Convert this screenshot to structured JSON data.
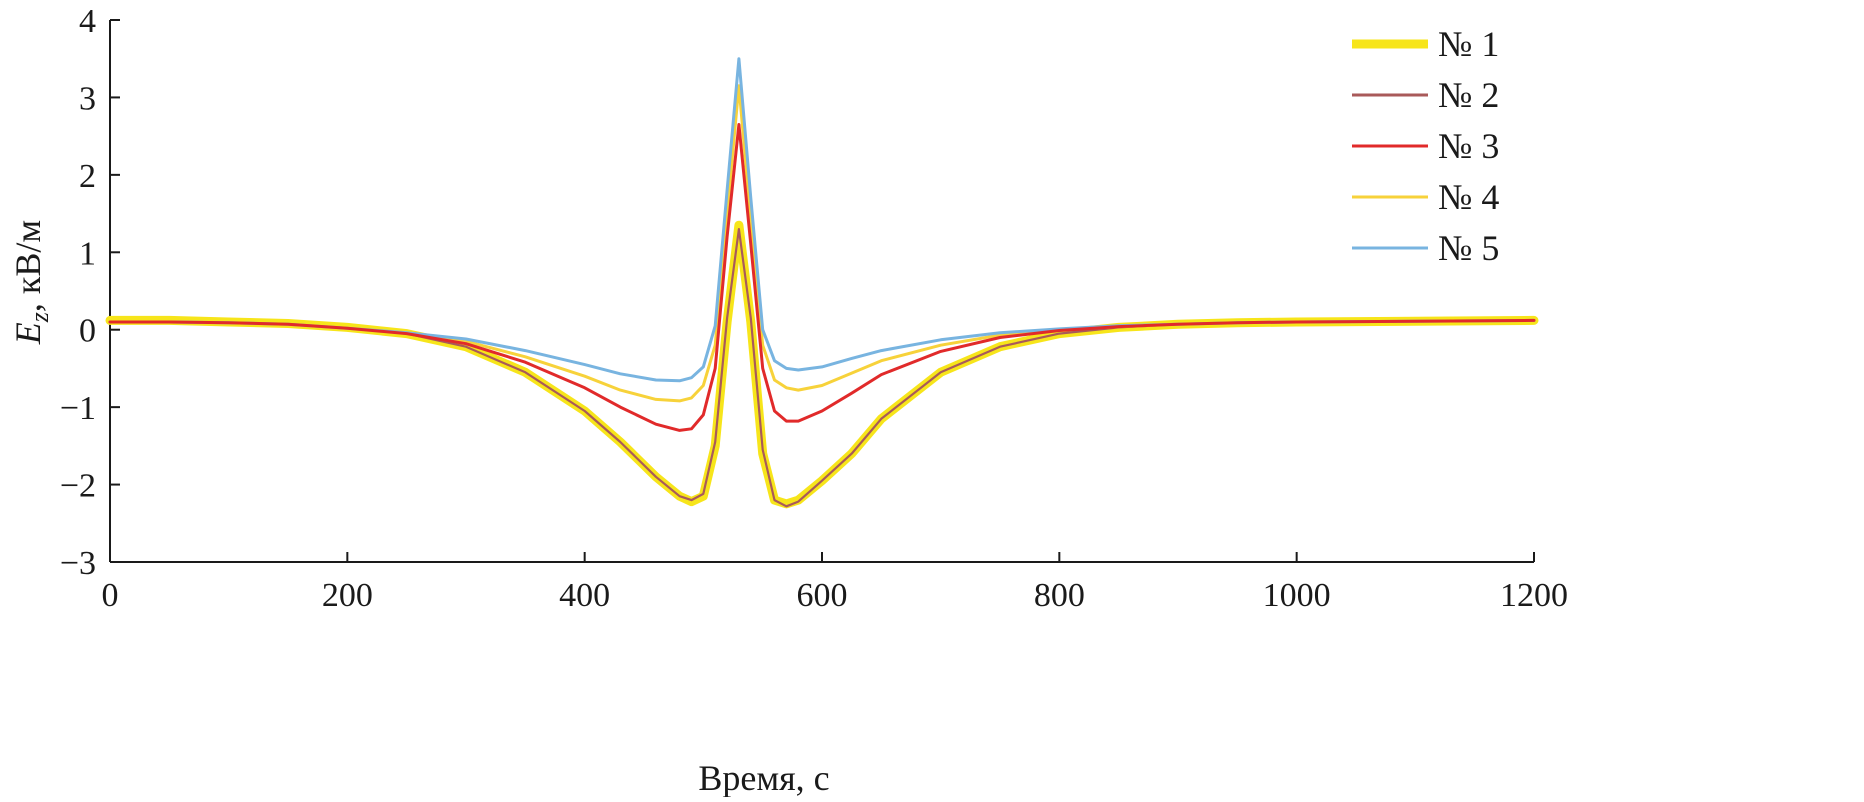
{
  "chart_data": {
    "type": "line",
    "title": "",
    "xlabel": "Время, с",
    "ylabel": {
      "symbol": "E",
      "subscript": "z",
      "unit": ", кВ/м"
    },
    "xlim": [
      0,
      1200
    ],
    "ylim": [
      -3,
      4
    ],
    "xticks": [
      0,
      200,
      400,
      600,
      800,
      1000,
      1200
    ],
    "yticks": [
      -3,
      -2,
      -1,
      0,
      1,
      2,
      3,
      4
    ],
    "xtick_labels": [
      "0",
      "200",
      "400",
      "600",
      "800",
      "1000",
      "1200"
    ],
    "ytick_labels": [
      "−3",
      "−2",
      "−1",
      "0",
      "1",
      "2",
      "3",
      "4"
    ],
    "grid": false,
    "legend_position": "top-right",
    "series": [
      {
        "name": "№ 1",
        "color": "#f7e51a",
        "x": [
          0,
          50,
          100,
          150,
          200,
          250,
          300,
          350,
          400,
          430,
          460,
          480,
          490,
          500,
          510,
          520,
          530,
          540,
          550,
          560,
          570,
          580,
          600,
          625,
          650,
          700,
          750,
          800,
          850,
          900,
          950,
          1000,
          1100,
          1200
        ],
        "y": [
          0.12,
          0.12,
          0.1,
          0.08,
          0.03,
          -0.05,
          -0.22,
          -0.55,
          -1.05,
          -1.45,
          -1.9,
          -2.15,
          -2.22,
          -2.15,
          -1.5,
          0.1,
          1.35,
          0.1,
          -1.6,
          -2.2,
          -2.25,
          -2.2,
          -1.95,
          -1.6,
          -1.15,
          -0.55,
          -0.22,
          -0.05,
          0.03,
          0.07,
          0.09,
          0.1,
          0.11,
          0.12
        ]
      },
      {
        "name": "№ 2",
        "color": "#a95a5a",
        "x": [
          0,
          50,
          100,
          150,
          200,
          250,
          300,
          350,
          400,
          430,
          460,
          480,
          490,
          500,
          510,
          520,
          530,
          540,
          550,
          560,
          570,
          580,
          600,
          625,
          650,
          700,
          750,
          800,
          850,
          900,
          950,
          1000,
          1100,
          1200
        ],
        "y": [
          0.1,
          0.1,
          0.09,
          0.07,
          0.02,
          -0.05,
          -0.22,
          -0.55,
          -1.05,
          -1.45,
          -1.9,
          -2.15,
          -2.2,
          -2.12,
          -1.45,
          0.15,
          1.3,
          0.15,
          -1.55,
          -2.2,
          -2.28,
          -2.22,
          -1.95,
          -1.6,
          -1.15,
          -0.55,
          -0.22,
          -0.05,
          0.03,
          0.07,
          0.09,
          0.1,
          0.11,
          0.12
        ]
      },
      {
        "name": "№ 3",
        "color": "#e12a2a",
        "x": [
          0,
          50,
          100,
          150,
          200,
          250,
          300,
          350,
          400,
          430,
          460,
          480,
          490,
          500,
          510,
          520,
          530,
          540,
          550,
          560,
          570,
          580,
          600,
          625,
          650,
          700,
          750,
          800,
          850,
          900,
          950,
          1000,
          1100,
          1200
        ],
        "y": [
          0.1,
          0.1,
          0.09,
          0.07,
          0.02,
          -0.05,
          -0.18,
          -0.42,
          -0.75,
          -1.0,
          -1.22,
          -1.3,
          -1.28,
          -1.1,
          -0.5,
          1.2,
          2.65,
          1.1,
          -0.5,
          -1.05,
          -1.18,
          -1.18,
          -1.05,
          -0.82,
          -0.58,
          -0.28,
          -0.1,
          -0.01,
          0.04,
          0.07,
          0.09,
          0.1,
          0.11,
          0.12
        ]
      },
      {
        "name": "№ 4",
        "color": "#f7d23a",
        "x": [
          0,
          50,
          100,
          150,
          200,
          250,
          300,
          350,
          400,
          430,
          460,
          480,
          490,
          500,
          510,
          520,
          530,
          540,
          550,
          560,
          570,
          580,
          600,
          625,
          650,
          700,
          750,
          800,
          850,
          900,
          950,
          1000,
          1100,
          1200
        ],
        "y": [
          0.1,
          0.1,
          0.09,
          0.07,
          0.02,
          -0.05,
          -0.15,
          -0.35,
          -0.6,
          -0.78,
          -0.9,
          -0.92,
          -0.88,
          -0.72,
          -0.2,
          1.5,
          3.15,
          1.4,
          -0.2,
          -0.65,
          -0.75,
          -0.78,
          -0.72,
          -0.56,
          -0.4,
          -0.2,
          -0.07,
          0.0,
          0.04,
          0.07,
          0.09,
          0.1,
          0.11,
          0.12
        ]
      },
      {
        "name": "№ 5",
        "color": "#78b4e0",
        "x": [
          0,
          50,
          100,
          150,
          200,
          250,
          300,
          350,
          400,
          430,
          460,
          480,
          490,
          500,
          510,
          520,
          530,
          540,
          550,
          560,
          570,
          580,
          600,
          625,
          650,
          700,
          750,
          800,
          850,
          900,
          950,
          1000,
          1100,
          1200
        ],
        "y": [
          0.1,
          0.1,
          0.09,
          0.07,
          0.02,
          -0.04,
          -0.12,
          -0.27,
          -0.45,
          -0.57,
          -0.65,
          -0.66,
          -0.62,
          -0.48,
          0.05,
          1.8,
          3.5,
          1.7,
          0.0,
          -0.4,
          -0.5,
          -0.52,
          -0.48,
          -0.37,
          -0.27,
          -0.13,
          -0.04,
          0.01,
          0.05,
          0.07,
          0.09,
          0.1,
          0.11,
          0.12
        ]
      }
    ]
  }
}
